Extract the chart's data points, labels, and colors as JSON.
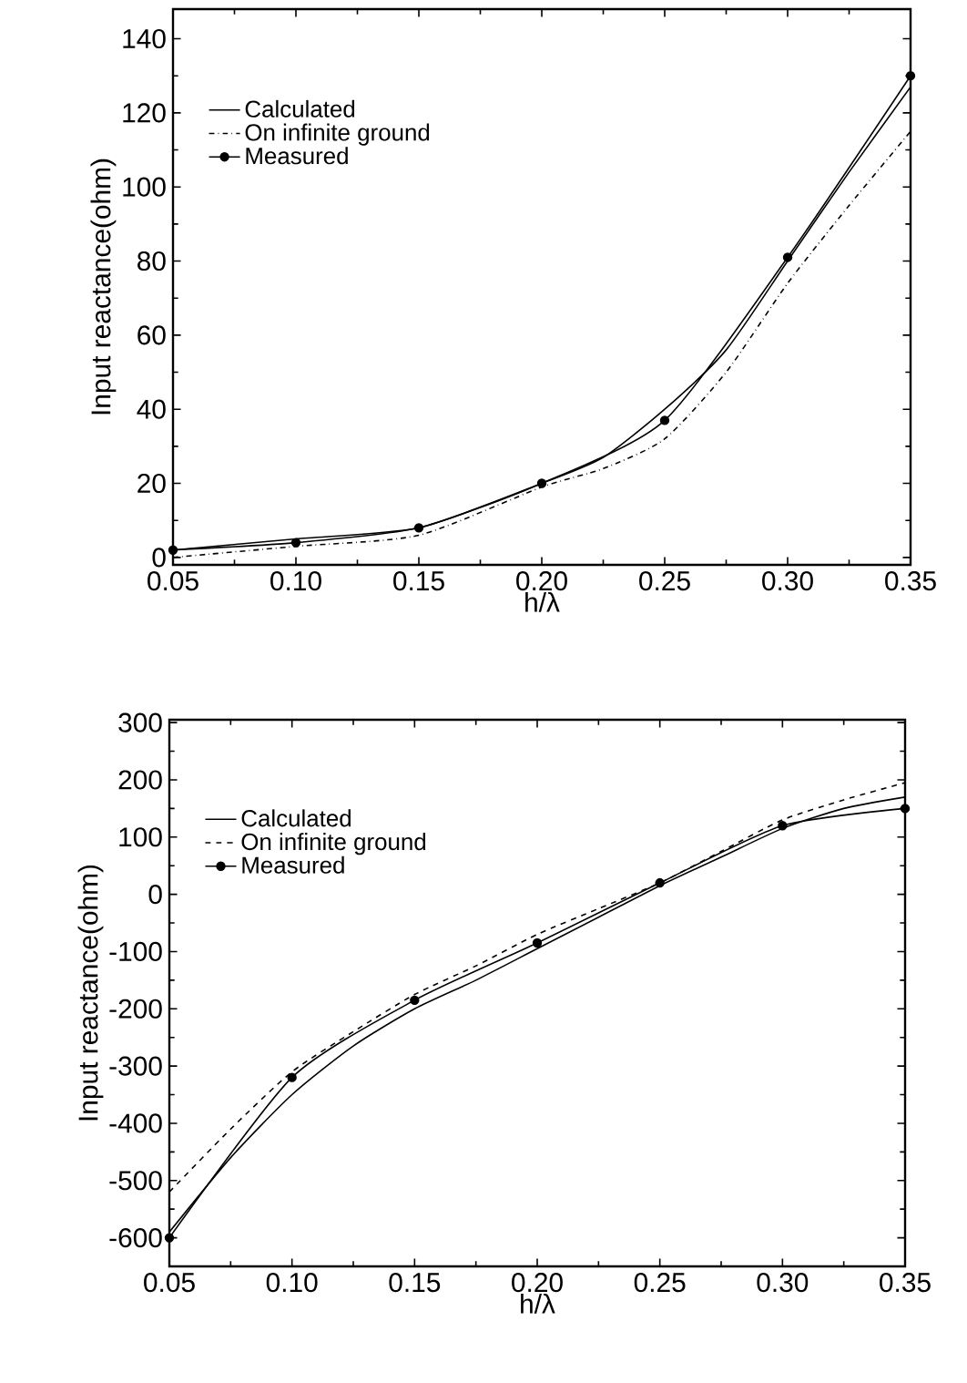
{
  "chart_data": [
    {
      "type": "line",
      "xlabel": "h/λ",
      "ylabel": "Input reactance(ohm)",
      "xlim": [
        0.05,
        0.35
      ],
      "ylim": [
        -2,
        148
      ],
      "xticks": [
        {
          "value": 0.05,
          "label": "0.05"
        },
        {
          "value": 0.1,
          "label": "0.10"
        },
        {
          "value": 0.15,
          "label": "0.15"
        },
        {
          "value": 0.2,
          "label": "0.20"
        },
        {
          "value": 0.25,
          "label": "0.25"
        },
        {
          "value": 0.3,
          "label": "0.30"
        },
        {
          "value": 0.35,
          "label": "0.35"
        }
      ],
      "yticks": [
        0,
        20,
        40,
        60,
        80,
        100,
        120,
        140
      ],
      "legend": "top left",
      "grid": false,
      "series": [
        {
          "name": "Calculated",
          "color": "#000000",
          "line_style": "solid",
          "marker": "none",
          "x": [
            0.05,
            0.1,
            0.15,
            0.2,
            0.225,
            0.25,
            0.275,
            0.3,
            0.325,
            0.35
          ],
          "values": [
            2,
            5,
            8,
            20,
            27,
            40,
            56,
            80,
            104,
            127
          ]
        },
        {
          "name": "On infinite ground",
          "color": "#000000",
          "line_style": "dashdot",
          "marker": "none",
          "x": [
            0.05,
            0.1,
            0.15,
            0.2,
            0.225,
            0.25,
            0.275,
            0.3,
            0.325,
            0.35
          ],
          "values": [
            0,
            3,
            6,
            19,
            24,
            32,
            50,
            74,
            95,
            115
          ]
        },
        {
          "name": "Measured",
          "color": "#000000",
          "line_style": "solid",
          "marker": "circle",
          "x": [
            0.05,
            0.1,
            0.15,
            0.2,
            0.25,
            0.3,
            0.35
          ],
          "values": [
            2,
            4,
            8,
            20,
            37,
            81,
            130
          ]
        }
      ]
    },
    {
      "type": "line",
      "xlabel": "h/λ",
      "ylabel": "Input reactance(ohm)",
      "xlim": [
        0.05,
        0.35
      ],
      "ylim": [
        -650,
        305
      ],
      "xticks": [
        {
          "value": 0.05,
          "label": "0.05"
        },
        {
          "value": 0.1,
          "label": "0.10"
        },
        {
          "value": 0.15,
          "label": "0.15"
        },
        {
          "value": 0.2,
          "label": "0.20"
        },
        {
          "value": 0.25,
          "label": "0.25"
        },
        {
          "value": 0.3,
          "label": "0.30"
        },
        {
          "value": 0.35,
          "label": "0.35"
        }
      ],
      "yticks": [
        -600,
        -500,
        -400,
        -300,
        -200,
        -100,
        0,
        100,
        200,
        300
      ],
      "legend": "top left",
      "grid": false,
      "series": [
        {
          "name": "Calculated",
          "color": "#000000",
          "line_style": "solid",
          "marker": "none",
          "x": [
            0.05,
            0.075,
            0.1,
            0.125,
            0.15,
            0.175,
            0.2,
            0.225,
            0.25,
            0.275,
            0.3,
            0.325,
            0.35
          ],
          "values": [
            -590,
            -460,
            -350,
            -265,
            -200,
            -150,
            -95,
            -40,
            15,
            65,
            115,
            150,
            170
          ]
        },
        {
          "name": "On infinite ground",
          "color": "#000000",
          "line_style": "dashed",
          "marker": "none",
          "x": [
            0.05,
            0.075,
            0.1,
            0.125,
            0.15,
            0.175,
            0.2,
            0.225,
            0.25,
            0.275,
            0.3,
            0.325,
            0.35
          ],
          "values": [
            -520,
            -410,
            -310,
            -240,
            -175,
            -125,
            -70,
            -25,
            20,
            75,
            130,
            165,
            195
          ]
        },
        {
          "name": "Measured",
          "color": "#000000",
          "line_style": "solid",
          "marker": "circle",
          "x": [
            0.05,
            0.1,
            0.15,
            0.2,
            0.25,
            0.3,
            0.35
          ],
          "values": [
            -600,
            -320,
            -185,
            -85,
            20,
            120,
            150
          ]
        }
      ]
    }
  ]
}
